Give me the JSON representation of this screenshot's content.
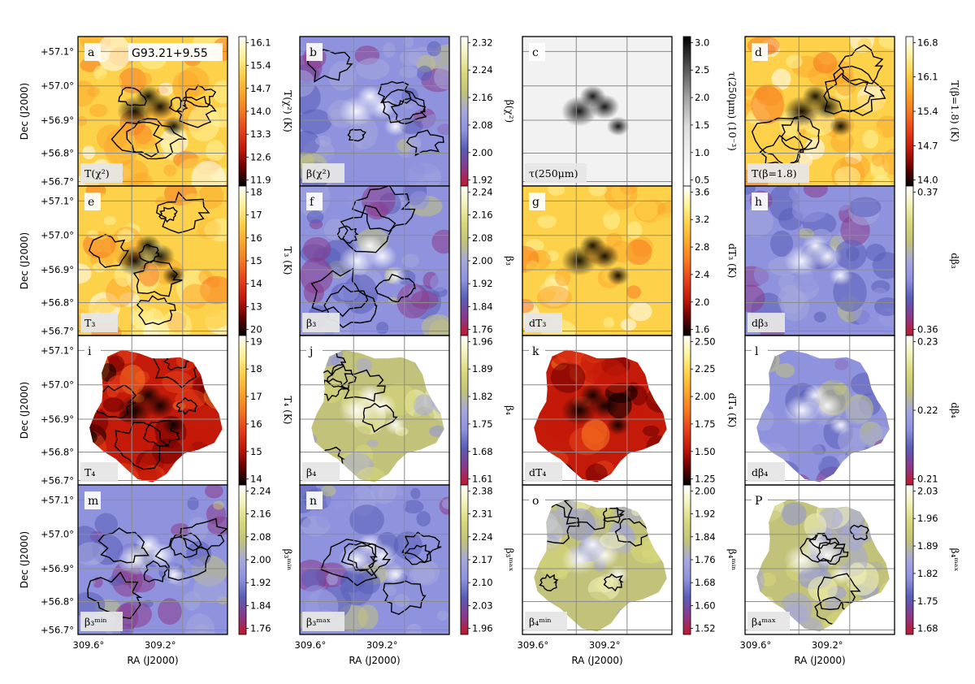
{
  "figure": {
    "source_name": "G93.21+9.55",
    "xlabel": "RA (J2000)",
    "ylabel": "Dec (J2000)",
    "ra_ticks": [
      "309.6°",
      "309.2°"
    ],
    "dec_ticks": [
      "+57.1°",
      "+57.0°",
      "+56.9°",
      "+56.8°",
      "+56.7°"
    ]
  },
  "chart_data": [
    {
      "type": "heatmap",
      "letter": "a",
      "label": "T(χ²)",
      "colorbar_label": "T(χ²) (K)",
      "cmap": "heat",
      "ticks": [
        "16.1",
        "15.4",
        "14.7",
        "14.0",
        "13.3",
        "12.6",
        "11.9"
      ],
      "contours": true,
      "coverage": "full"
    },
    {
      "type": "heatmap",
      "letter": "b",
      "label": "β(χ²)",
      "colorbar_label": "β(χ²)",
      "cmap": "beta",
      "ticks": [
        "2.32",
        "2.24",
        "2.16",
        "2.08",
        "2.00",
        "1.92"
      ],
      "contours": true,
      "coverage": "full"
    },
    {
      "type": "heatmap",
      "letter": "c",
      "label": "τ(250μm)",
      "colorbar_label": "τ(250μm) (10⁻³)",
      "cmap": "gray",
      "ticks": [
        "3.0",
        "2.5",
        "2.0",
        "1.5",
        "1.0",
        "0.5"
      ],
      "contours": false,
      "coverage": "full"
    },
    {
      "type": "heatmap",
      "letter": "d",
      "label": "T(β=1.8)",
      "colorbar_label": "T(β=1.8) (K)",
      "cmap": "heat",
      "ticks": [
        "16.8",
        "16.1",
        "15.4",
        "14.7",
        "14.0"
      ],
      "contours": true,
      "coverage": "full"
    },
    {
      "type": "heatmap",
      "letter": "e",
      "label": "T₃",
      "colorbar_label": "T₃ (K)",
      "cmap": "heat",
      "ticks": [
        "18",
        "17",
        "16",
        "15",
        "14",
        "13",
        "20"
      ],
      "contours": true,
      "coverage": "full"
    },
    {
      "type": "heatmap",
      "letter": "f",
      "label": "β₃",
      "colorbar_label": "β₃",
      "cmap": "beta",
      "ticks": [
        "2.24",
        "2.16",
        "2.08",
        "2.00",
        "1.92",
        "1.84",
        "1.76"
      ],
      "contours": true,
      "coverage": "full"
    },
    {
      "type": "heatmap",
      "letter": "g",
      "label": "dT₃",
      "colorbar_label": "dT₃ (K)",
      "cmap": "heat",
      "ticks": [
        "3.6",
        "3.2",
        "2.8",
        "2.4",
        "2.0",
        "1.6"
      ],
      "contours": false,
      "coverage": "full"
    },
    {
      "type": "heatmap",
      "letter": "h",
      "label": "dβ₃",
      "colorbar_label": "dβ₃",
      "cmap": "beta",
      "ticks": [
        "0.37",
        "0.36"
      ],
      "contours": false,
      "coverage": "full"
    },
    {
      "type": "heatmap",
      "letter": "i",
      "label": "T₄",
      "colorbar_label": "T₄ (K)",
      "cmap": "heat",
      "ticks": [
        "19",
        "18",
        "17",
        "16",
        "15",
        "14"
      ],
      "contours": true,
      "coverage": "blob"
    },
    {
      "type": "heatmap",
      "letter": "j",
      "label": "β₄",
      "colorbar_label": "β₄",
      "cmap": "beta",
      "ticks": [
        "1.96",
        "1.89",
        "1.82",
        "1.75",
        "1.68",
        "1.61"
      ],
      "contours": true,
      "coverage": "blob"
    },
    {
      "type": "heatmap",
      "letter": "k",
      "label": "dT₄",
      "colorbar_label": "dT₄ (K)",
      "cmap": "heat",
      "ticks": [
        "2.50",
        "2.25",
        "2.00",
        "1.75",
        "1.50",
        "1.25"
      ],
      "contours": false,
      "coverage": "blob"
    },
    {
      "type": "heatmap",
      "letter": "l",
      "label": "dβ₄",
      "colorbar_label": "dβ₄",
      "cmap": "beta",
      "ticks": [
        "0.23",
        "0.22",
        "0.21"
      ],
      "contours": false,
      "coverage": "blob"
    },
    {
      "type": "heatmap",
      "letter": "m",
      "label": "β₃ᵐⁱⁿ",
      "colorbar_label": "β₃ᵐⁱⁿ",
      "cmap": "beta",
      "ticks": [
        "2.24",
        "2.16",
        "2.08",
        "2.00",
        "1.92",
        "1.84",
        "1.76"
      ],
      "contours": true,
      "coverage": "full"
    },
    {
      "type": "heatmap",
      "letter": "n",
      "label": "β₃ᵐᵃˣ",
      "colorbar_label": "β₃ᵐᵃˣ",
      "cmap": "beta",
      "ticks": [
        "2.38",
        "2.31",
        "2.24",
        "2.17",
        "2.10",
        "2.03",
        "1.96"
      ],
      "contours": true,
      "coverage": "full"
    },
    {
      "type": "heatmap",
      "letter": "o",
      "label": "β₄ᵐⁱⁿ",
      "colorbar_label": "β₄ᵐⁱⁿ",
      "cmap": "beta",
      "ticks": [
        "2.00",
        "1.92",
        "1.84",
        "1.76",
        "1.68",
        "1.60",
        "1.52"
      ],
      "contours": true,
      "coverage": "blob"
    },
    {
      "type": "heatmap",
      "letter": "P",
      "label": "β₄ᵐᵃˣ",
      "colorbar_label": "β₄ᵐᵃˣ",
      "cmap": "beta",
      "ticks": [
        "2.03",
        "1.96",
        "1.89",
        "1.82",
        "1.75",
        "1.68"
      ],
      "contours": true,
      "coverage": "blob"
    }
  ],
  "colors": {
    "heat": [
      "#000000",
      "#6b0000",
      "#c41a0a",
      "#e8421a",
      "#f57a20",
      "#fba72c",
      "#fdd24a",
      "#fff39a",
      "#ffffff"
    ],
    "beta": [
      "#c0182a",
      "#8a3a8c",
      "#5a5eb8",
      "#8f93de",
      "#a6a8dc",
      "#c2c27a",
      "#d8d87a",
      "#f2f2b8",
      "#ffffff"
    ],
    "gray": [
      "#ffffff",
      "#f2f2f2",
      "#dcdcdc",
      "#a0a0a0",
      "#505050",
      "#000000"
    ],
    "frame": "#000000",
    "grid": "#8c8c8c"
  }
}
